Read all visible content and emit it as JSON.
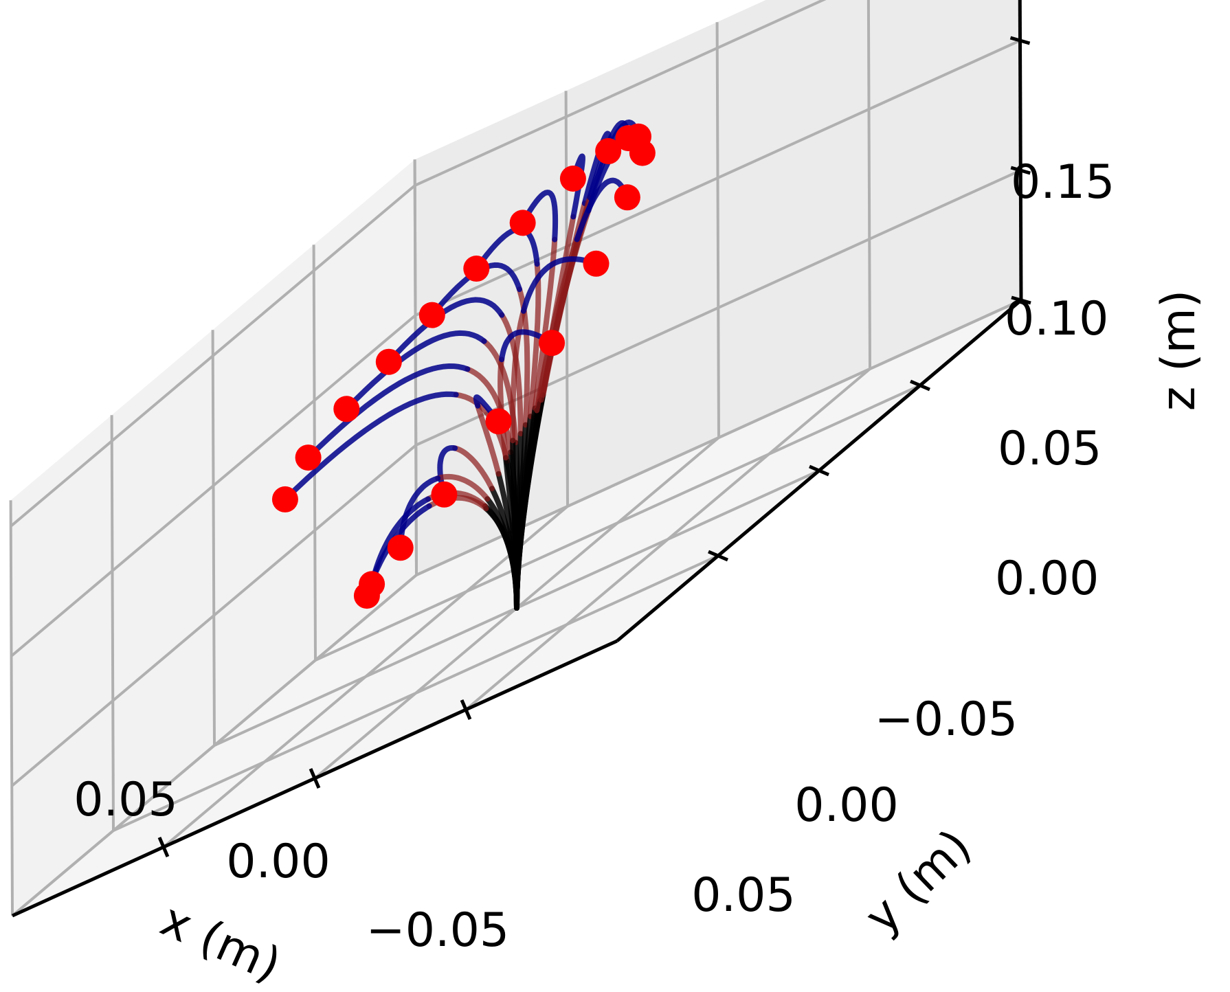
{
  "chart_data": {
    "type": "line-3d",
    "title": "",
    "axes": {
      "x": {
        "label": "x (m)",
        "ticks": [
          "0.05",
          "0.00",
          "−0.05"
        ],
        "tick_values": [
          0.05,
          0.0,
          -0.05
        ],
        "range": [
          -0.1,
          0.1
        ]
      },
      "y": {
        "label": "y (m)",
        "ticks": [
          "−0.05",
          "0.00",
          "0.05"
        ],
        "tick_values": [
          -0.05,
          0.0,
          0.05
        ],
        "range": [
          -0.1,
          0.1
        ]
      },
      "z": {
        "label": "z (m)",
        "ticks": [
          "0.00",
          "0.05",
          "0.10",
          "0.15"
        ],
        "tick_values": [
          0.0,
          0.05,
          0.1,
          0.15
        ],
        "range": [
          0.0,
          0.16
        ]
      }
    },
    "grid": true,
    "colors": {
      "segment_1": "#000000",
      "segment_2": "#8b1a1a",
      "segment_3": "#00008b",
      "tip_marker": "#ff0000",
      "grid": "#b0b0b0",
      "pane": "#f0f0f0"
    },
    "series": [
      {
        "tip": [
          0.079,
          0.004,
          0.081
        ]
      },
      {
        "tip": [
          0.078,
          0.014,
          0.09
        ]
      },
      {
        "tip": [
          0.072,
          0.024,
          0.099
        ]
      },
      {
        "tip": [
          0.064,
          0.033,
          0.107
        ]
      },
      {
        "tip": [
          0.055,
          0.041,
          0.115
        ]
      },
      {
        "tip": [
          0.045,
          0.048,
          0.123
        ]
      },
      {
        "tip": [
          0.033,
          0.053,
          0.131
        ]
      },
      {
        "tip": [
          0.019,
          0.057,
          0.138
        ]
      },
      {
        "tip": [
          0.006,
          0.055,
          0.143
        ]
      },
      {
        "tip": [
          -0.004,
          0.05,
          0.146
        ]
      },
      {
        "tip": [
          -0.012,
          0.043,
          0.147
        ]
      },
      {
        "tip": [
          -0.02,
          0.033,
          0.143
        ]
      },
      {
        "tip": [
          -0.027,
          0.015,
          0.134
        ]
      },
      {
        "tip": [
          -0.03,
          -0.005,
          0.12
        ]
      },
      {
        "tip": [
          -0.028,
          -0.024,
          0.103
        ]
      },
      {
        "tip": [
          -0.021,
          -0.04,
          0.087
        ]
      },
      {
        "tip": [
          -0.011,
          -0.052,
          0.072
        ]
      },
      {
        "tip": [
          -0.0005,
          -0.058,
          0.061
        ]
      },
      {
        "tip": [
          0.009,
          -0.058,
          0.052
        ]
      },
      {
        "tip": [
          0.016,
          -0.05,
          0.046
        ]
      }
    ]
  }
}
